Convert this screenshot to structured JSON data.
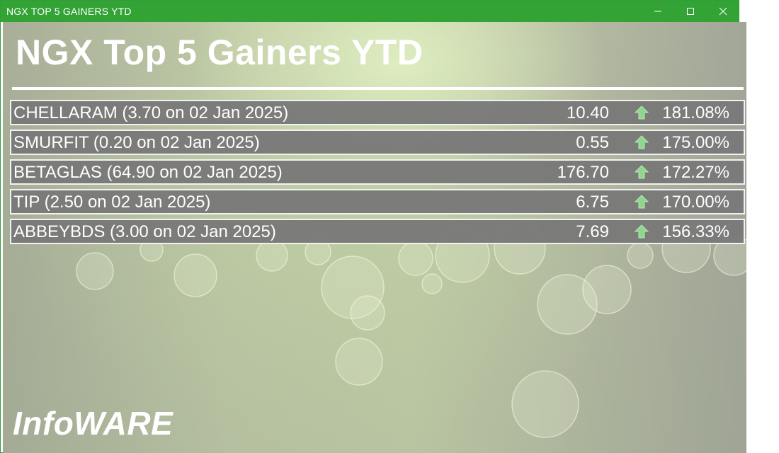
{
  "window": {
    "title": "NGX TOP 5 GAINERS YTD",
    "controls": [
      "minimize-icon",
      "maximize-icon",
      "close-icon"
    ]
  },
  "header": {
    "title": "NGX Top 5 Gainers YTD"
  },
  "gainers": [
    {
      "label": "CHELLARAM (3.70 on 02 Jan 2025)",
      "price": "10.40",
      "change": "181.08%",
      "icon": "up-arrow-icon"
    },
    {
      "label": "SMURFIT (0.20 on 02 Jan 2025)",
      "price": "0.55",
      "change": "175.00%",
      "icon": "up-arrow-icon"
    },
    {
      "label": "BETAGLAS (64.90 on 02 Jan 2025)",
      "price": "176.70",
      "change": "172.27%",
      "icon": "up-arrow-icon"
    },
    {
      "label": "TIP (2.50 on 02 Jan 2025)",
      "price": "6.75",
      "change": "170.00%",
      "icon": "up-arrow-icon"
    },
    {
      "label": "ABBEYBDS (3.00 on 02 Jan 2025)",
      "price": "7.69",
      "change": "156.33%",
      "icon": "up-arrow-icon"
    }
  ],
  "footer": {
    "brand": "InfoWARE"
  },
  "colors": {
    "titlebar": "#33a336",
    "row_background": "#787878",
    "arrow": "#8fd68f"
  }
}
